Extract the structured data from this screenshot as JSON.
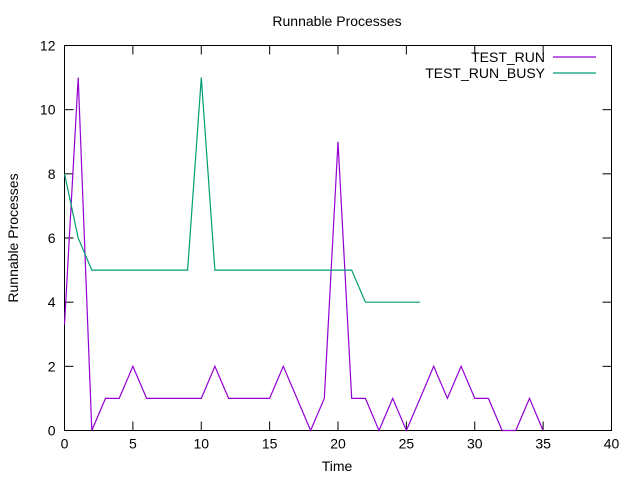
{
  "chart_data": {
    "type": "line",
    "title": "Runnable Processes",
    "xlabel": "Time",
    "ylabel": "Runnable Processes",
    "xlim": [
      0,
      40
    ],
    "ylim": [
      0,
      12
    ],
    "xticks": [
      0,
      5,
      10,
      15,
      20,
      25,
      30,
      35,
      40
    ],
    "yticks": [
      0,
      2,
      4,
      6,
      8,
      10,
      12
    ],
    "grid": false,
    "legend_position": "top-right",
    "series": [
      {
        "name": "TEST_RUN",
        "color": "#9400d3",
        "x": [
          0,
          1,
          2,
          3,
          4,
          5,
          6,
          7,
          8,
          9,
          10,
          11,
          12,
          13,
          14,
          15,
          16,
          17,
          18,
          19,
          20,
          21,
          22,
          23,
          24,
          25,
          26,
          27,
          28,
          29,
          30,
          31,
          32,
          33,
          34,
          35
        ],
        "y": [
          3.3,
          11,
          0,
          1,
          1,
          2,
          1,
          1,
          1,
          1,
          1,
          2,
          1,
          1,
          1,
          1,
          2,
          1,
          0,
          1,
          9,
          1,
          1,
          0,
          1,
          0,
          1,
          2,
          1,
          2,
          1,
          1,
          0,
          0,
          1,
          0
        ]
      },
      {
        "name": "TEST_RUN_BUSY",
        "color": "#009e73",
        "x": [
          0,
          1,
          2,
          3,
          4,
          5,
          6,
          7,
          8,
          9,
          10,
          11,
          12,
          13,
          14,
          15,
          16,
          17,
          18,
          19,
          20,
          21,
          22,
          23,
          24,
          25,
          26
        ],
        "y": [
          8,
          6,
          5,
          5,
          5,
          5,
          5,
          5,
          5,
          5,
          11,
          5,
          5,
          5,
          5,
          5,
          5,
          5,
          5,
          5,
          5,
          5,
          4,
          4,
          4,
          4,
          4
        ]
      }
    ]
  }
}
